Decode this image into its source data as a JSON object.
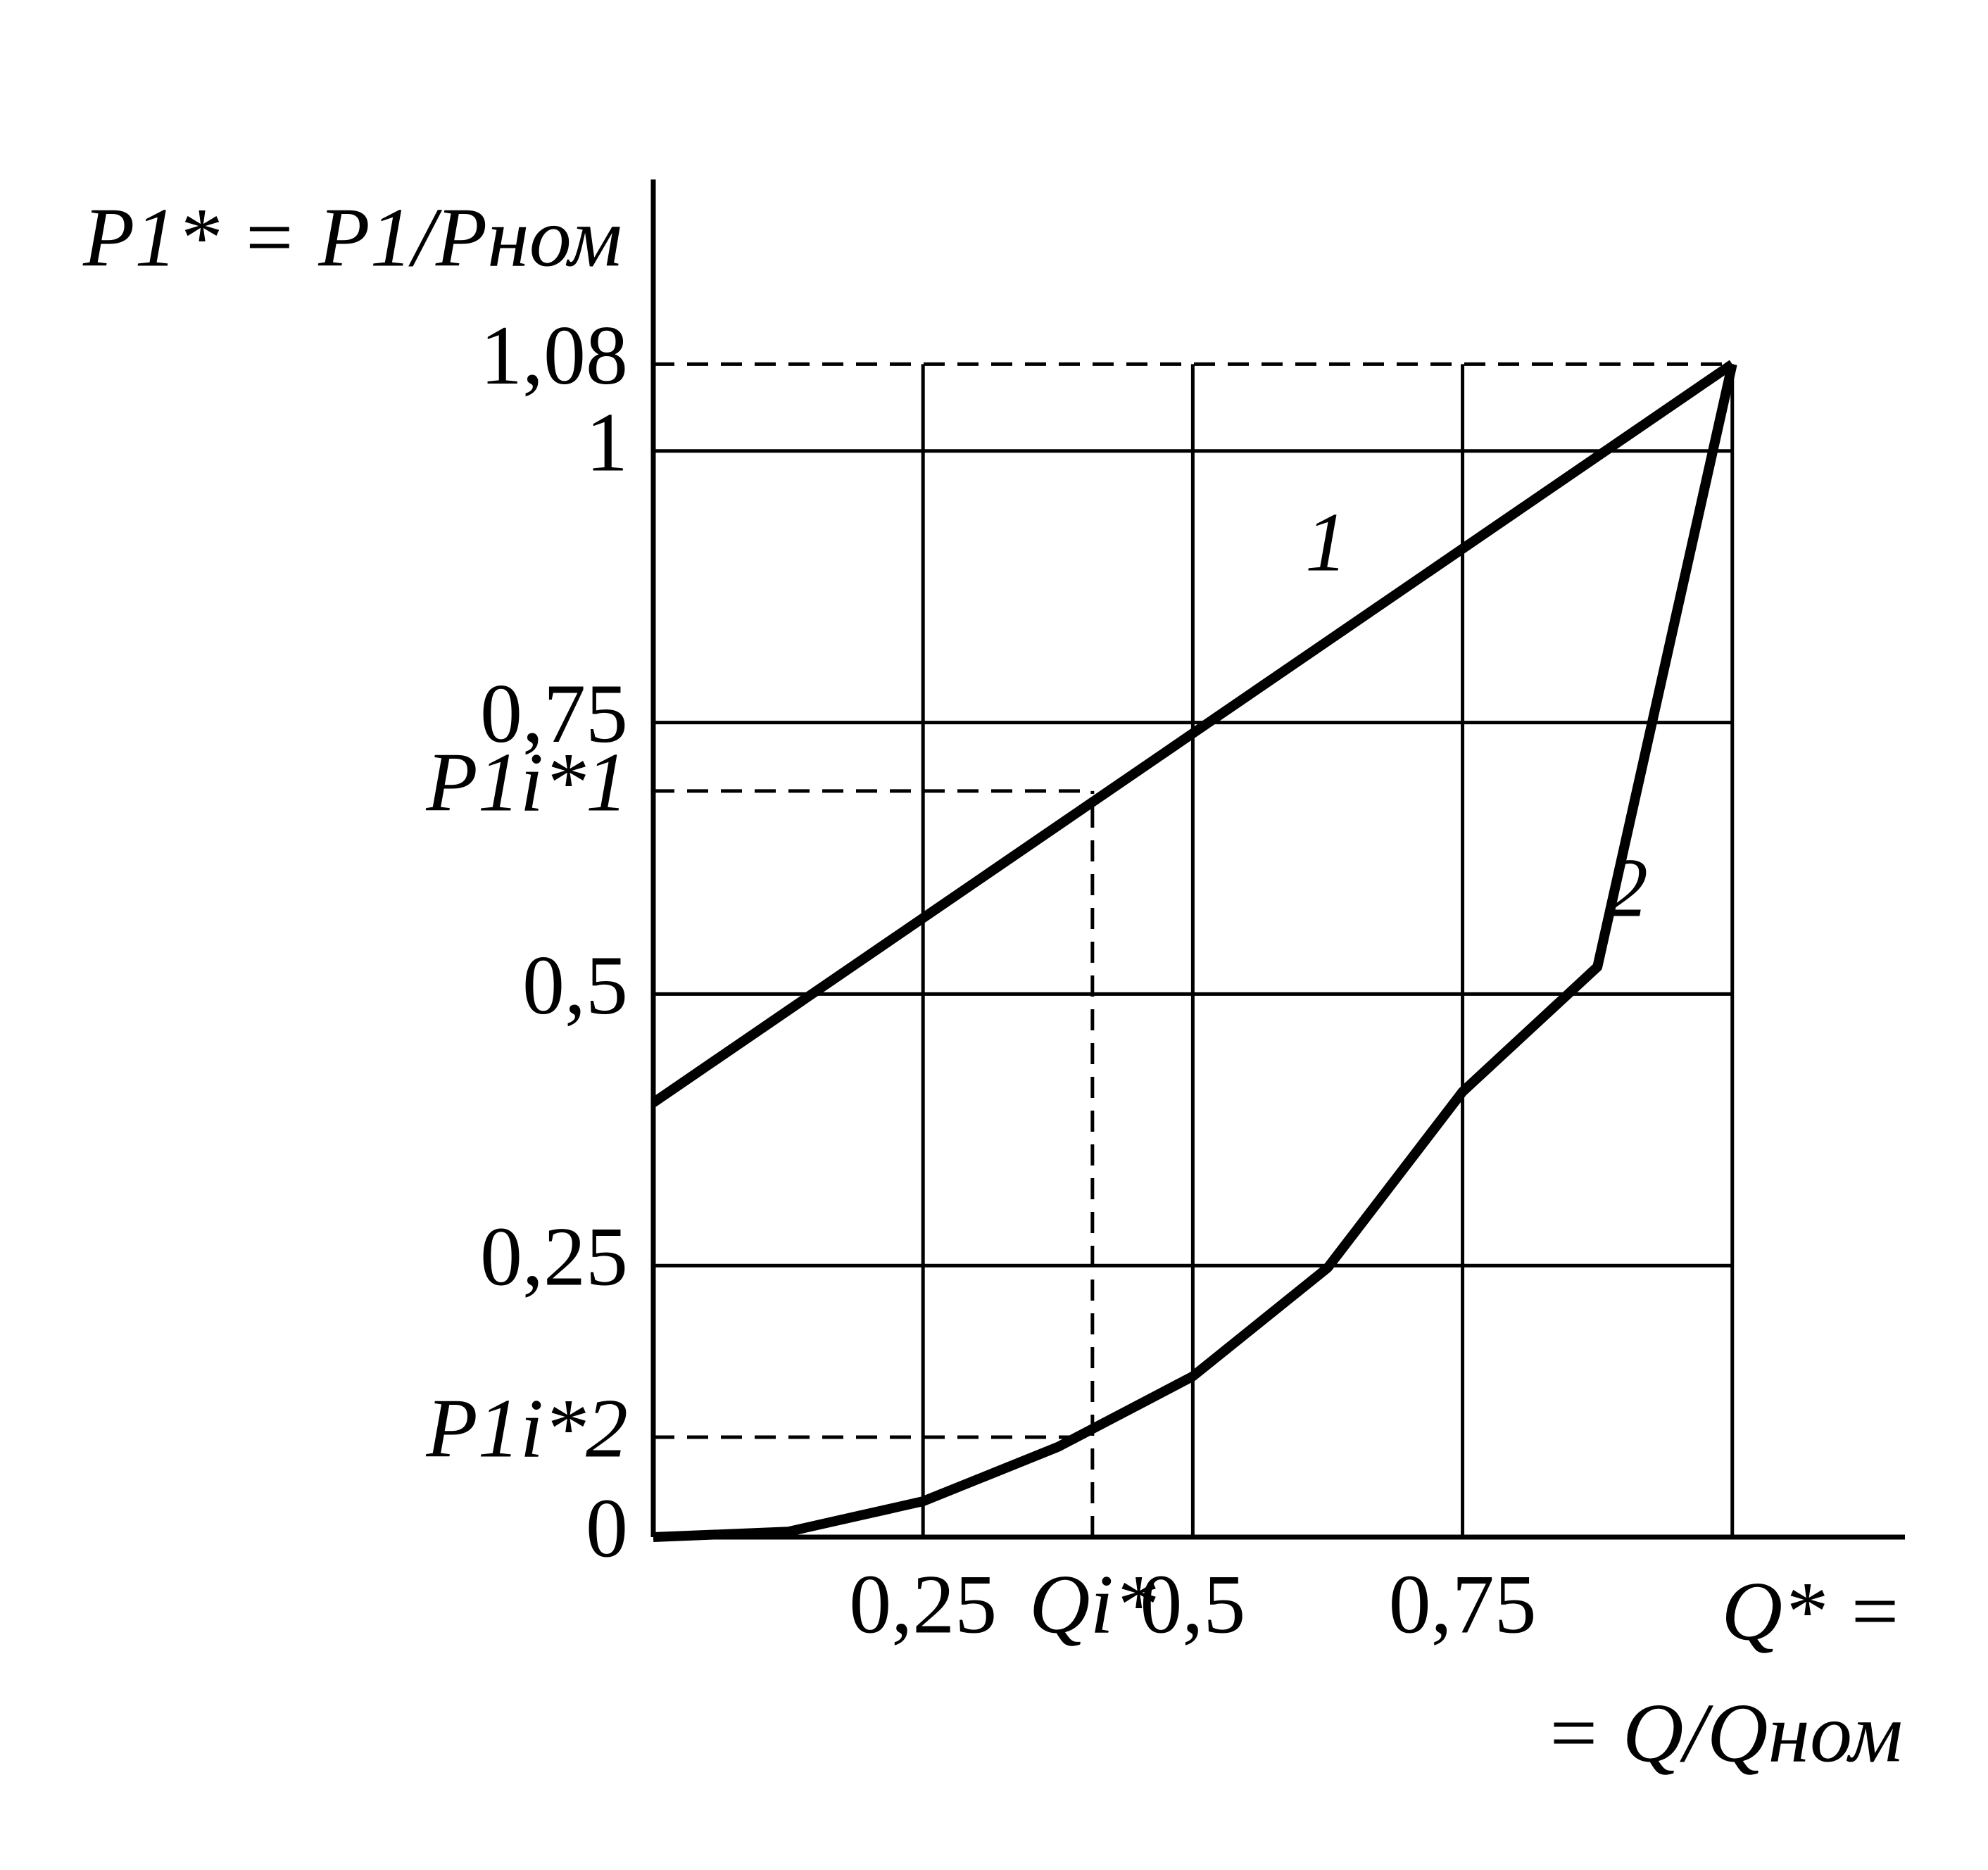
{
  "chart_data": {
    "type": "line",
    "y_label": "P1* = P1/Pном",
    "x_label": [
      "Q* =",
      "= Q/Qном"
    ],
    "x": [
      0,
      0.125,
      0.25,
      0.375,
      0.5,
      0.625,
      0.75,
      0.875,
      1
    ],
    "series": [
      {
        "name": "1",
        "color": "#000000",
        "values": [
          0.4,
          0.485,
          0.57,
          0.655,
          0.74,
          0.825,
          0.91,
          0.995,
          1.08
        ]
      },
      {
        "name": "2",
        "color": "#000000",
        "values": [
          0,
          0.005,
          0.033,
          0.083,
          0.148,
          0.248,
          0.41,
          0.525,
          1.08
        ]
      }
    ],
    "xlim": [
      0,
      1.16
    ],
    "ylim": [
      0,
      1.25
    ],
    "xticks": [
      {
        "value": 0.25,
        "label": "0,25"
      },
      {
        "value": 0.407,
        "label": "Qi*",
        "dashed": true
      },
      {
        "value": 0.5,
        "label": "0,5"
      },
      {
        "value": 0.75,
        "label": "0,75"
      }
    ],
    "yticks": [
      0,
      {
        "value": 0.092,
        "label": "P1i*2",
        "dashed": true
      },
      {
        "value": 0.25,
        "label": "0,25"
      },
      {
        "value": 0.5,
        "label": "0,5"
      },
      {
        "value": 0.687,
        "label": "P1i*1",
        "dashed": true
      },
      {
        "value": 0.75,
        "label": "0,75"
      },
      1,
      {
        "value": 1.08,
        "label": "1,08",
        "dashed": true
      }
    ],
    "grid": true
  }
}
